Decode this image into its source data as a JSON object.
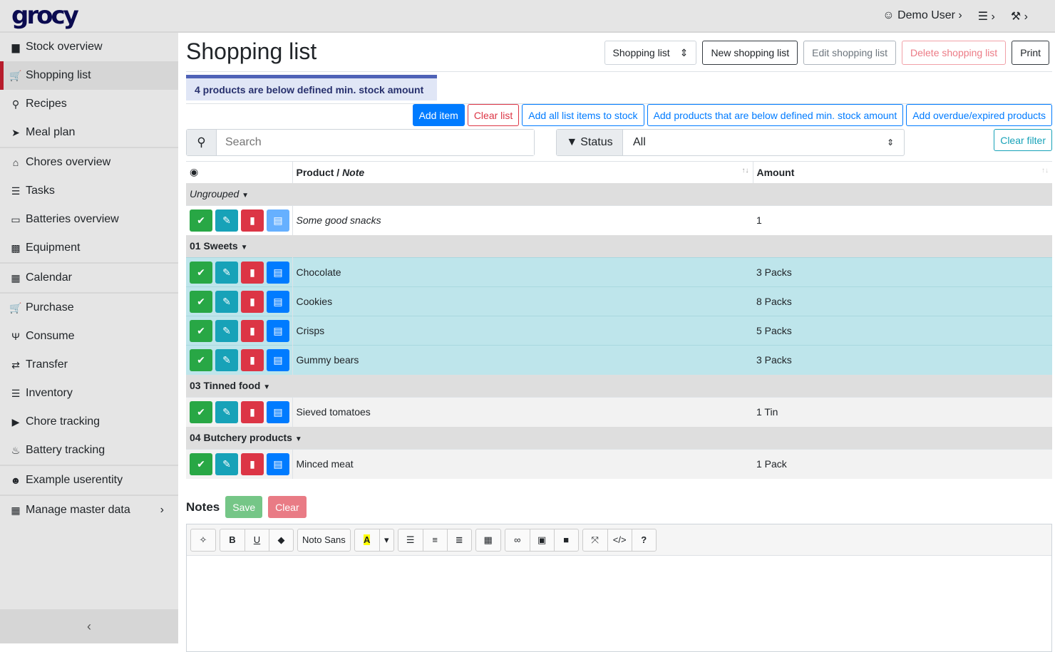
{
  "app": {
    "logo": "grocy",
    "user": "Demo User"
  },
  "sidebar": {
    "items": [
      {
        "label": "Stock overview",
        "icon": "box-icon",
        "icon_glyph": "▆"
      },
      {
        "label": "Shopping list",
        "icon": "cart-icon",
        "icon_glyph": "🛒",
        "active": true
      },
      {
        "label": "Recipes",
        "icon": "utensil-icon",
        "icon_glyph": "⚲"
      },
      {
        "label": "Meal plan",
        "icon": "paper-plane-icon",
        "icon_glyph": "➤"
      },
      {
        "label": "Chores overview",
        "icon": "home-icon",
        "icon_glyph": "⌂"
      },
      {
        "label": "Tasks",
        "icon": "tasks-icon",
        "icon_glyph": "☰"
      },
      {
        "label": "Batteries overview",
        "icon": "battery-icon",
        "icon_glyph": "▭"
      },
      {
        "label": "Equipment",
        "icon": "toolbox-icon",
        "icon_glyph": "▩"
      },
      {
        "label": "Calendar",
        "icon": "calendar-icon",
        "icon_glyph": "▦"
      },
      {
        "label": "Purchase",
        "icon": "cart-icon",
        "icon_glyph": "🛒"
      },
      {
        "label": "Consume",
        "icon": "utensils-icon",
        "icon_glyph": "Ψ"
      },
      {
        "label": "Transfer",
        "icon": "exchange-icon",
        "icon_glyph": "⇄"
      },
      {
        "label": "Inventory",
        "icon": "list-icon",
        "icon_glyph": "☰"
      },
      {
        "label": "Chore tracking",
        "icon": "play-icon",
        "icon_glyph": "▶"
      },
      {
        "label": "Battery tracking",
        "icon": "fire-icon",
        "icon_glyph": "♨"
      },
      {
        "label": "Example userentity",
        "icon": "smile-icon",
        "icon_glyph": "☻"
      },
      {
        "label": "Manage master data",
        "icon": "table-icon",
        "icon_glyph": "▦"
      }
    ],
    "collapse": "‹"
  },
  "header": {
    "title": "Shopping list",
    "list_select": "Shopping list",
    "new": "New shopping list",
    "edit": "Edit shopping list",
    "delete": "Delete shopping list",
    "print": "Print"
  },
  "alert": "4 products are below defined min. stock amount",
  "actions": {
    "add_item": "Add item",
    "clear_list": "Clear list",
    "add_all": "Add all list items to stock",
    "add_below": "Add products that are below defined min. stock amount",
    "add_overdue": "Add overdue/expired products"
  },
  "filters": {
    "search_placeholder": "Search",
    "status_label": "Status",
    "status_value": "All",
    "clear_filter": "Clear filter"
  },
  "table": {
    "col_product": "Product / ",
    "col_note": "Note",
    "col_amount": "Amount",
    "groups": [
      {
        "name": "Ungrouped",
        "italic": true,
        "items": [
          {
            "product": "Some good snacks",
            "amount": "1",
            "note": true
          }
        ]
      },
      {
        "name": "01 Sweets",
        "items": [
          {
            "product": "Chocolate",
            "amount": "3 Packs",
            "below_min": true
          },
          {
            "product": "Cookies",
            "amount": "8 Packs",
            "below_min": true
          },
          {
            "product": "Crisps",
            "amount": "5 Packs",
            "below_min": true
          },
          {
            "product": "Gummy bears",
            "amount": "3 Packs",
            "below_min": true
          }
        ]
      },
      {
        "name": "03 Tinned food",
        "items": [
          {
            "product": "Sieved tomatoes",
            "amount": "1 Tin"
          }
        ]
      },
      {
        "name": "04 Butchery products",
        "items": [
          {
            "product": "Minced meat",
            "amount": "1 Pack"
          }
        ]
      }
    ]
  },
  "notes": {
    "title": "Notes",
    "save": "Save",
    "clear": "Clear",
    "font": "Noto Sans"
  },
  "colors": {
    "primary": "#007bff",
    "success": "#28a745",
    "info": "#17a2b8",
    "danger": "#dc3545",
    "row_info": "#bee5eb",
    "active_border": "#b71c2c"
  }
}
